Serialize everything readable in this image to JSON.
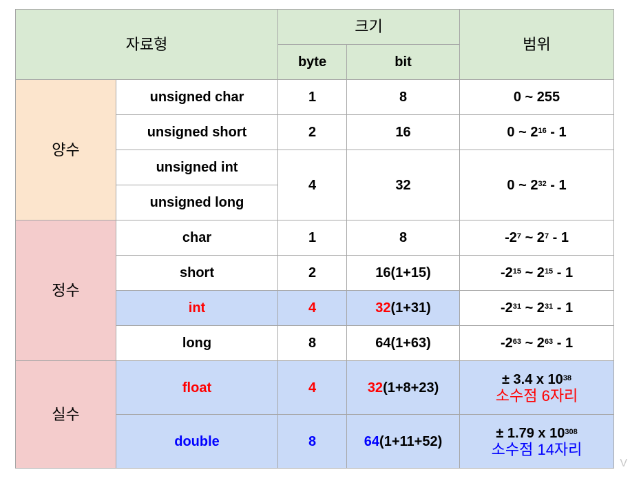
{
  "header": {
    "type_label": "자료형",
    "size_label": "크기",
    "byte_label": "byte",
    "bit_label": "bit",
    "range_label": "범위"
  },
  "groups": {
    "positive": "양수",
    "integer": "정수",
    "real": "실수"
  },
  "rows": {
    "uchar": {
      "name": "unsigned char",
      "byte": "1",
      "bit": "8",
      "range": "0 ~ 255"
    },
    "ushort": {
      "name": "unsigned short",
      "byte": "2",
      "bit": "16",
      "range_base": "0 ~ 2",
      "range_exp": "16",
      "range_tail": " - 1"
    },
    "uint": {
      "name": "unsigned int"
    },
    "ulong": {
      "name": "unsigned long"
    },
    "uintlong": {
      "byte": "4",
      "bit": "32",
      "range_base": "0 ~ 2",
      "range_exp": "32",
      "range_tail": " - 1"
    },
    "char": {
      "name": "char",
      "byte": "1",
      "bit": "8",
      "r1": "-2",
      "e1": "7",
      "r2": " ~ 2",
      "e2": "7",
      "r3": " - 1"
    },
    "short": {
      "name": "short",
      "byte": "2",
      "bit": "16(1+15)",
      "r1": "-2",
      "e1": "15",
      "r2": " ~ 2",
      "e2": "15",
      "r3": " - 1"
    },
    "int": {
      "name": "int",
      "byte": "4",
      "bit_hl": "32",
      "bit_rest": "(1+31)",
      "r1": "-2",
      "e1": "31",
      "r2": " ~ 2",
      "e2": "31",
      "r3": " - 1"
    },
    "long": {
      "name": "long",
      "byte": "8",
      "bit": "64(1+63)",
      "r1": "-2",
      "e1": "63",
      "r2": " ~ 2",
      "e2": "63",
      "r3": " - 1"
    },
    "float": {
      "name": "float",
      "byte": "4",
      "bit_hl": "32",
      "bit_rest": "(1+8+23)",
      "r_base": "± 3.4 x 10",
      "r_exp": "38",
      "precision": "소수점 6자리"
    },
    "double": {
      "name": "double",
      "byte": "8",
      "bit_hl": "64",
      "bit_rest": "(1+11+52)",
      "r_base": "± 1.79 x 10",
      "r_exp": "308",
      "precision": "소수점 14자리"
    }
  },
  "colors": {
    "header_bg": "#d9ead3",
    "positive_bg": "#fce5cd",
    "integer_bg": "#f4cccc",
    "highlight_bg": "#c9daf8",
    "red": "#ff0000",
    "blue": "#0000ff"
  },
  "watermark": "V"
}
